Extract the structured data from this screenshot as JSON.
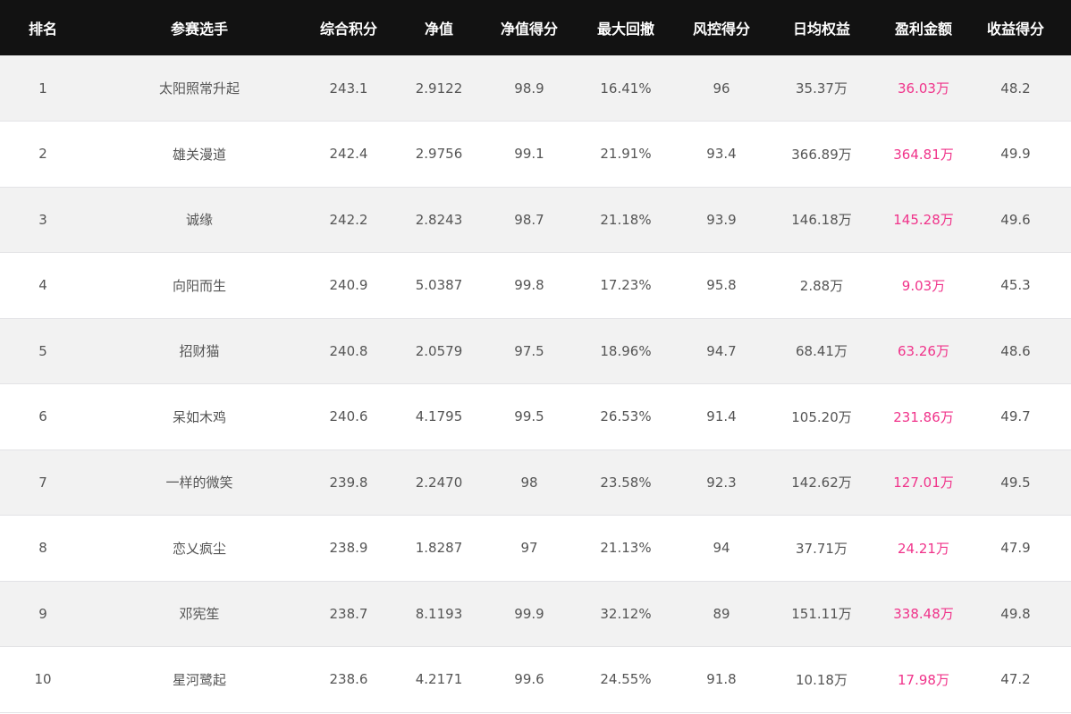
{
  "colors": {
    "header_bg": "#121212",
    "profit_text": "#f0338a",
    "odd_row": "#f2f2f2"
  },
  "columns": [
    "排名",
    "参赛选手",
    "综合积分",
    "净值",
    "净值得分",
    "最大回撤",
    "风控得分",
    "日均权益",
    "盈利金额",
    "收益得分"
  ],
  "rows": [
    [
      "1",
      "太阳照常升起",
      "243.1",
      "2.9122",
      "98.9",
      "16.41%",
      "96",
      "35.37万",
      "36.03万",
      "48.2"
    ],
    [
      "2",
      "雄关漫道",
      "242.4",
      "2.9756",
      "99.1",
      "21.91%",
      "93.4",
      "366.89万",
      "364.81万",
      "49.9"
    ],
    [
      "3",
      "诚缘",
      "242.2",
      "2.8243",
      "98.7",
      "21.18%",
      "93.9",
      "146.18万",
      "145.28万",
      "49.6"
    ],
    [
      "4",
      "向阳而生",
      "240.9",
      "5.0387",
      "99.8",
      "17.23%",
      "95.8",
      "2.88万",
      "9.03万",
      "45.3"
    ],
    [
      "5",
      "招财猫",
      "240.8",
      "2.0579",
      "97.5",
      "18.96%",
      "94.7",
      "68.41万",
      "63.26万",
      "48.6"
    ],
    [
      "6",
      "呆如木鸡",
      "240.6",
      "4.1795",
      "99.5",
      "26.53%",
      "91.4",
      "105.20万",
      "231.86万",
      "49.7"
    ],
    [
      "7",
      "一样的微笑",
      "239.8",
      "2.2470",
      "98",
      "23.58%",
      "92.3",
      "142.62万",
      "127.01万",
      "49.5"
    ],
    [
      "8",
      "恋乂疯尘",
      "238.9",
      "1.8287",
      "97",
      "21.13%",
      "94",
      "37.71万",
      "24.21万",
      "47.9"
    ],
    [
      "9",
      "邓宪笙",
      "238.7",
      "8.1193",
      "99.9",
      "32.12%",
      "89",
      "151.11万",
      "338.48万",
      "49.8"
    ],
    [
      "10",
      "星河鹭起",
      "238.6",
      "4.2171",
      "99.6",
      "24.55%",
      "91.8",
      "10.18万",
      "17.98万",
      "47.2"
    ]
  ]
}
